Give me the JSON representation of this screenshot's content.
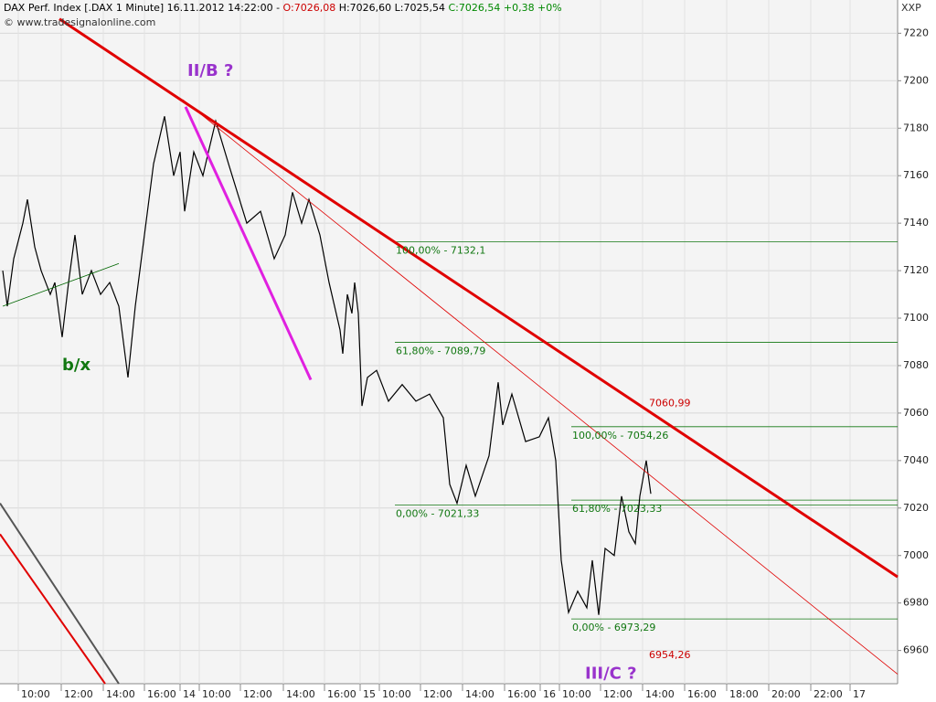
{
  "chart_data": {
    "type": "line",
    "header": [
      {
        "text": "DAX Perf. Index [.DAX  1 Minute] 16.11.2012 14:22:00 - ",
        "color": "#000000"
      },
      {
        "text": "O:7026,08",
        "color": "#cc0000"
      },
      {
        "text": " H:7026,60 L:7025,54 ",
        "color": "#000000"
      },
      {
        "text": "C:7026,54 +0,38 +0%",
        "color": "#008800"
      }
    ],
    "subtitle": "© www.tradesignalonline.com",
    "axis_label": "XXP",
    "xlim": [
      0,
      982
    ],
    "ylim": [
      6946,
      7234
    ],
    "yticks": [
      6960,
      6980,
      7000,
      7020,
      7040,
      7060,
      7080,
      7100,
      7120,
      7140,
      7160,
      7180,
      7200,
      7220
    ],
    "xticks": [
      {
        "value": 20,
        "label": "10:00"
      },
      {
        "value": 67,
        "label": "12:00"
      },
      {
        "value": 113,
        "label": "14:00"
      },
      {
        "value": 158,
        "label": "16:00"
      },
      {
        "value": 197,
        "label": "14"
      },
      {
        "value": 218,
        "label": "10:00"
      },
      {
        "value": 263,
        "label": "12:00"
      },
      {
        "value": 310,
        "label": "14:00"
      },
      {
        "value": 355,
        "label": "16:00"
      },
      {
        "value": 394,
        "label": "15"
      },
      {
        "value": 415,
        "label": "10:00"
      },
      {
        "value": 460,
        "label": "12:00"
      },
      {
        "value": 506,
        "label": "14:00"
      },
      {
        "value": 552,
        "label": "16:00"
      },
      {
        "value": 591,
        "label": "16"
      },
      {
        "value": 612,
        "label": "10:00"
      },
      {
        "value": 657,
        "label": "12:00"
      },
      {
        "value": 703,
        "label": "14:00"
      },
      {
        "value": 749,
        "label": "16:00"
      },
      {
        "value": 795,
        "label": "18:00"
      },
      {
        "value": 841,
        "label": "20:00"
      },
      {
        "value": 887,
        "label": "22:00"
      },
      {
        "value": 930,
        "label": "17"
      }
    ],
    "grid": true,
    "series": [
      {
        "color": "#000000",
        "x": [
          3,
          8,
          15,
          25,
          30,
          38,
          45,
          55,
          60,
          68,
          75,
          82,
          90,
          100,
          110,
          120,
          130,
          140,
          148,
          158,
          168,
          180,
          190,
          197,
          202,
          212,
          222,
          228,
          236,
          250,
          262,
          270,
          285,
          300,
          312,
          320,
          330,
          338,
          350,
          360,
          372,
          375,
          380,
          385,
          388,
          392,
          396,
          402,
          412,
          425,
          440,
          455,
          470,
          485,
          492,
          500,
          510,
          520,
          535,
          545,
          550,
          560,
          575,
          590,
          600,
          608,
          614,
          622,
          632,
          642,
          648,
          655,
          662,
          672,
          680,
          688,
          695,
          700,
          707,
          712
        ],
        "values": [
          7120,
          7105,
          7125,
          7140,
          7150,
          7130,
          7120,
          7110,
          7115,
          7092,
          7115,
          7135,
          7110,
          7120,
          7110,
          7115,
          7105,
          7075,
          7105,
          7135,
          7165,
          7185,
          7160,
          7170,
          7145,
          7170,
          7160,
          7170,
          7183,
          7165,
          7150,
          7140,
          7145,
          7125,
          7135,
          7153,
          7140,
          7150,
          7135,
          7115,
          7095,
          7085,
          7110,
          7102,
          7115,
          7102,
          7063,
          7075,
          7078,
          7065,
          7072,
          7065,
          7068,
          7058,
          7030,
          7022,
          7038,
          7025,
          7042,
          7073,
          7055,
          7068,
          7048,
          7050,
          7058,
          7040,
          6998,
          6976,
          6985,
          6978,
          6998,
          6975,
          7003,
          7000,
          7025,
          7010,
          7005,
          7025,
          7040,
          7026
        ]
      }
    ],
    "lines": [
      {
        "color": "#e00000",
        "width": 3,
        "x": [
          65,
          982
        ],
        "values": [
          7226,
          6991
        ]
      },
      {
        "color": "#e00000",
        "width": 0.8,
        "x": [
          200,
          982
        ],
        "values": [
          7192,
          6950
        ]
      },
      {
        "color": "#e020e0",
        "width": 3,
        "x": [
          203,
          340
        ],
        "values": [
          7189,
          7074
        ]
      },
      {
        "color": "#006600",
        "width": 0.8,
        "x": [
          3,
          130
        ],
        "values": [
          7105,
          7123
        ]
      },
      {
        "color": "#555555",
        "width": 2,
        "x": [
          0,
          130
        ],
        "values": [
          7022,
          6946
        ]
      },
      {
        "color": "#e00000",
        "width": 2,
        "x": [
          0,
          115
        ],
        "values": [
          7009,
          6946
        ]
      }
    ],
    "fib_levels": [
      {
        "label": "100,00% - 7132,1",
        "value": 7132.1,
        "x": [
          432,
          982
        ]
      },
      {
        "label": "61,80% - 7089,79",
        "value": 7089.79,
        "x": [
          432,
          982
        ]
      },
      {
        "label": "0,00% - 7021,33",
        "value": 7021.33,
        "x": [
          432,
          982
        ]
      },
      {
        "label": "100,00% - 7054,26",
        "value": 7054.26,
        "x": [
          625,
          982
        ]
      },
      {
        "label": "61,80% - 7023,33",
        "value": 7023.33,
        "x": [
          625,
          982
        ]
      },
      {
        "label": "0,00% - 6973,29",
        "value": 6973.29,
        "x": [
          625,
          982
        ]
      }
    ],
    "annotations": [
      {
        "text": "II/B ?",
        "x": 205,
        "y": 7204,
        "color": "#9933cc",
        "size": 18
      },
      {
        "text": "b/x",
        "x": 68,
        "y": 7080,
        "color": "#117711",
        "size": 18
      },
      {
        "text": "III/C ?",
        "x": 640,
        "y": 6950,
        "color": "#9933cc",
        "size": 18
      },
      {
        "text": "7060,99",
        "x": 710,
        "y": 7064,
        "color": "#cc0000",
        "size": 11
      },
      {
        "text": "6954,26",
        "x": 710,
        "y": 6958,
        "color": "#cc0000",
        "size": 11
      }
    ]
  }
}
